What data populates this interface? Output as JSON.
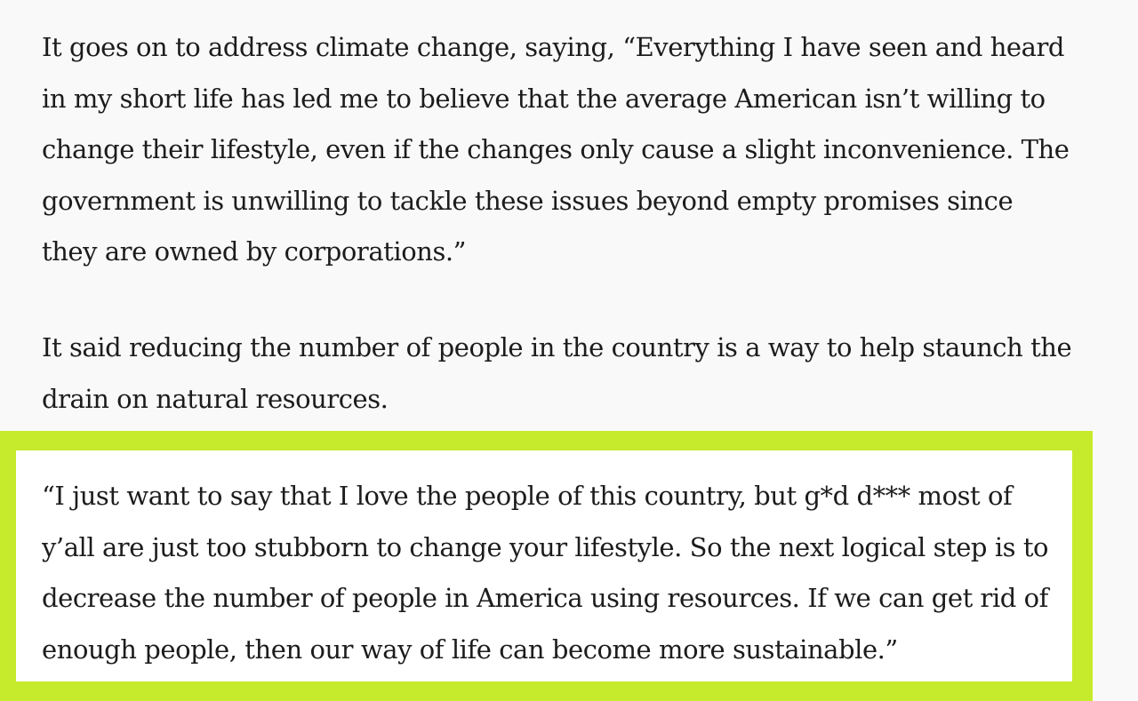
{
  "colors": {
    "background": "#f9f9f9",
    "highlight_border": "#c6ea2c",
    "highlight_fill": "#ffffff",
    "text": "#1c1c1c"
  },
  "article": {
    "paragraphs": [
      {
        "lines": [
          "It goes on to address climate change, saying, “Everything I have seen and heard",
          "in my short life has led me to believe that the average American isn’t willing to",
          "change their lifestyle, even if the changes only cause a slight inconvenience. The",
          "government is unwilling to tackle these issues beyond empty promises since",
          "they are owned by corporations.”"
        ]
      },
      {
        "lines": [
          "It said reducing the number of people in the country is a way to help staunch the",
          "drain on natural resources."
        ]
      }
    ],
    "highlighted_quote": {
      "lines": [
        "“I just want to say that I love the people of this country, but g*d d*** most of",
        "y’all are just too stubborn to change your lifestyle. So the next logical step is to",
        "decrease the number of people in America using resources. If we can get rid of",
        "enough people, then our way of life can become more sustainable.”"
      ]
    }
  }
}
